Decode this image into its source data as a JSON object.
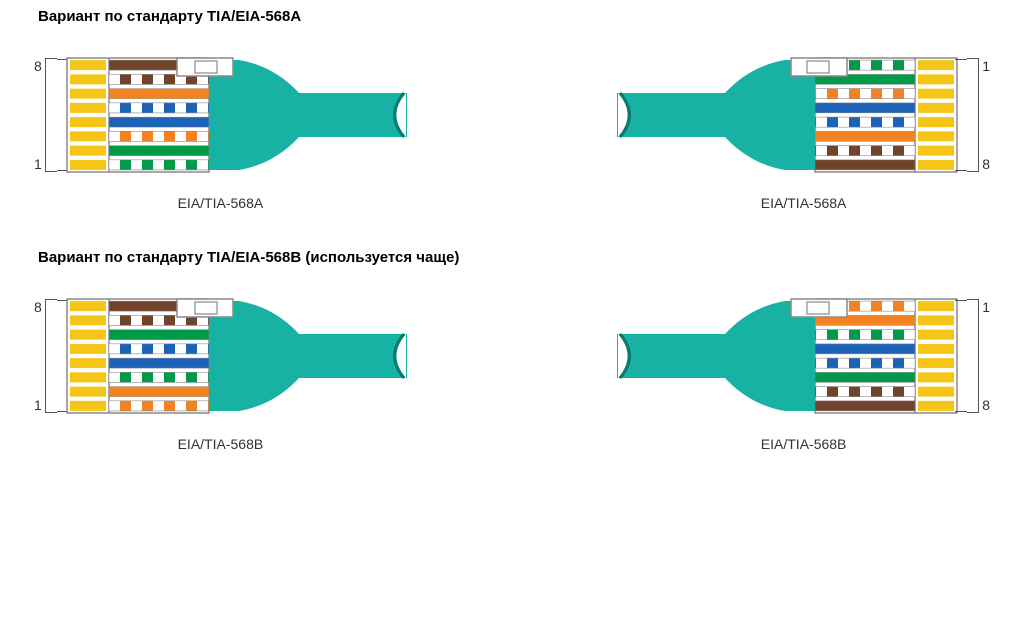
{
  "wire_colors": {
    "brown": {
      "base": "#71432b",
      "stripe": null
    },
    "brown_white": {
      "base": "#ffffff",
      "stripe": "#71432b"
    },
    "orange": {
      "base": "#f58220",
      "stripe": null
    },
    "orange_white": {
      "base": "#ffffff",
      "stripe": "#f58220"
    },
    "blue": {
      "base": "#1c63b7",
      "stripe": null
    },
    "blue_white": {
      "base": "#ffffff",
      "stripe": "#1c63b7"
    },
    "green": {
      "base": "#009b48",
      "stripe": null
    },
    "green_white": {
      "base": "#ffffff",
      "stripe": "#009b48"
    }
  },
  "contact_color": "#f5c518",
  "plug_body_stroke": "#8a8a8a",
  "plug_body_fill": "#ffffff",
  "cable_outer": "#17b2a4",
  "cable_inner": "#0a7a70",
  "boot_color": "#17b2a4",
  "pin_text_color": "#333333",
  "label_color": "#333333",
  "heading_color": "#000000",
  "font_family": "Arial, Helvetica, sans-serif",
  "heading_fontsize": 15,
  "label_fontsize": 14,
  "pin_order_568A": [
    "brown",
    "brown_white",
    "orange",
    "blue_white",
    "blue",
    "orange_white",
    "green",
    "green_white"
  ],
  "pin_order_568B": [
    "brown",
    "brown_white",
    "green",
    "blue_white",
    "blue",
    "green_white",
    "orange",
    "orange_white"
  ],
  "diagrams": [
    {
      "heading": "Вариант по стандарту TIA/EIA-568A",
      "left": {
        "standard": "EIA/TIA-568A",
        "order_key": "pin_order_568A",
        "reversed": false,
        "top_pin": "8",
        "bottom_pin": "1"
      },
      "right": {
        "standard": "EIA/TIA-568A",
        "order_key": "pin_order_568A",
        "reversed": true,
        "top_pin": "1",
        "bottom_pin": "8"
      }
    },
    {
      "heading": "Вариант по стандарту TIA/EIA-568B (используется чаще)",
      "left": {
        "standard": "EIA/TIA-568B",
        "order_key": "pin_order_568B",
        "reversed": false,
        "top_pin": "8",
        "bottom_pin": "1"
      },
      "right": {
        "standard": "EIA/TIA-568B",
        "order_key": "pin_order_568B",
        "reversed": true,
        "top_pin": "1",
        "bottom_pin": "8"
      }
    }
  ]
}
